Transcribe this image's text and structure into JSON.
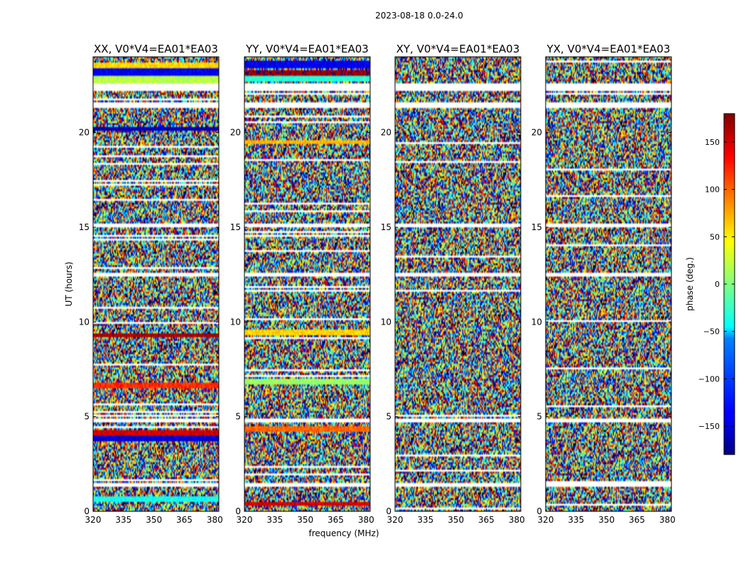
{
  "figure": {
    "suptitle": "2023-08-18 0.0-24.0",
    "xlabel": "frequency (MHz)",
    "ylabel": "UT (hours)"
  },
  "colorbar": {
    "label": "phase (deg.)",
    "ticks": [
      150,
      100,
      50,
      0,
      -50,
      -100,
      -150
    ],
    "tick_labels": [
      "150",
      "100",
      "50",
      "0",
      "−50",
      "−100",
      "−150"
    ],
    "range": [
      -180,
      180
    ],
    "colormap": "jet"
  },
  "chart_data": {
    "type": "heatmap",
    "title": "2023-08-18 0.0-24.0",
    "xlabel": "frequency (MHz)",
    "ylabel": "UT (hours)",
    "xlim": [
      320,
      382
    ],
    "ylim": [
      0,
      24
    ],
    "xticks": [
      320,
      335,
      350,
      365,
      380
    ],
    "yticks": [
      0,
      5,
      10,
      15,
      20
    ],
    "zlabel": "phase (deg.)",
    "zlim": [
      -180,
      180
    ],
    "flagged_ut_ranges": [
      [
        0.35,
        0.45
      ],
      [
        1.3,
        1.55
      ],
      [
        4.7,
        4.95
      ],
      [
        12.45,
        12.6
      ],
      [
        15.0,
        15.15
      ],
      [
        21.3,
        21.55
      ],
      [
        22.2,
        22.55
      ]
    ],
    "panels": [
      {
        "title": "XX, V0*V4=EA01*EA03",
        "coherent_bands": [
          {
            "ut": [
              0.55,
              0.8
            ],
            "phase": -40
          },
          {
            "ut": [
              3.7,
              3.95
            ],
            "phase": -150
          },
          {
            "ut": [
              4.0,
              4.3
            ],
            "phase": 150
          },
          {
            "ut": [
              6.55,
              6.85
            ],
            "phase": 120
          },
          {
            "ut": [
              9.2,
              9.45
            ],
            "phase": 165
          },
          {
            "ut": [
              20.1,
              20.25
            ],
            "phase": -160
          },
          {
            "ut": [
              22.6,
              23.0
            ],
            "phase": 20
          },
          {
            "ut": [
              23.0,
              23.35
            ],
            "phase": -140
          },
          {
            "ut": [
              23.35,
              23.7
            ],
            "phase": 60
          }
        ]
      },
      {
        "title": "YY, V0*V4=EA01*EA03",
        "coherent_bands": [
          {
            "ut": [
              0.3,
              0.5
            ],
            "phase": 150
          },
          {
            "ut": [
              4.2,
              4.5
            ],
            "phase": 100
          },
          {
            "ut": [
              6.7,
              6.95
            ],
            "phase": 10
          },
          {
            "ut": [
              9.3,
              9.6
            ],
            "phase": 60
          },
          {
            "ut": [
              19.4,
              19.6
            ],
            "phase": 70
          },
          {
            "ut": [
              22.7,
              23.0
            ],
            "phase": -30
          },
          {
            "ut": [
              23.0,
              23.3
            ],
            "phase": 170
          },
          {
            "ut": [
              23.4,
              23.8
            ],
            "phase": -140
          }
        ]
      },
      {
        "title": "XY, V0*V4=EA01*EA03",
        "coherent_bands": []
      },
      {
        "title": "YX, V0*V4=EA01*EA03",
        "coherent_bands": []
      }
    ]
  }
}
